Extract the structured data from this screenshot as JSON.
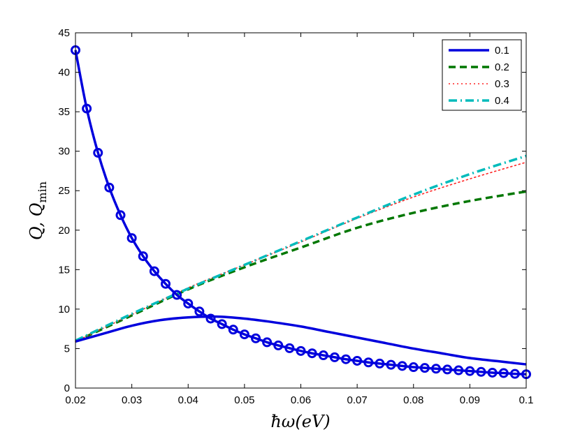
{
  "chart_data": {
    "type": "line",
    "title": "",
    "xlabel": "ħω(eV)",
    "ylabel": "Q, Q_min",
    "ylabel_main": "Q, Q",
    "ylabel_sub": "min",
    "xlim": [
      0.02,
      0.1
    ],
    "ylim": [
      0,
      45
    ],
    "xticks": [
      0.02,
      0.03,
      0.04,
      0.05,
      0.06,
      0.07,
      0.08,
      0.09,
      0.1
    ],
    "xtick_labels": [
      "0.02",
      "0.03",
      "0.04",
      "0.05",
      "0.06",
      "0.07",
      "0.08",
      "0.09",
      "0.1"
    ],
    "yticks": [
      0,
      5,
      10,
      15,
      20,
      25,
      30,
      35,
      40,
      45
    ],
    "ytick_labels": [
      "0",
      "5",
      "10",
      "15",
      "20",
      "25",
      "30",
      "35",
      "40",
      "45"
    ],
    "grid": false,
    "legend_position": "top-right",
    "series": [
      {
        "name": "0.1",
        "color": "#0000dd",
        "style": "solid",
        "x": [
          0.02,
          0.025,
          0.03,
          0.035,
          0.04,
          0.045,
          0.05,
          0.055,
          0.06,
          0.065,
          0.07,
          0.075,
          0.08,
          0.085,
          0.09,
          0.095,
          0.1
        ],
        "values": [
          5.9,
          6.9,
          7.9,
          8.6,
          8.95,
          9.05,
          8.8,
          8.35,
          7.8,
          7.1,
          6.4,
          5.7,
          5.0,
          4.4,
          3.8,
          3.4,
          3.0
        ]
      },
      {
        "name": "0.2",
        "color": "#007700",
        "style": "dashed",
        "x": [
          0.02,
          0.03,
          0.04,
          0.05,
          0.06,
          0.07,
          0.08,
          0.09,
          0.1
        ],
        "values": [
          5.9,
          9.2,
          12.5,
          15.3,
          17.8,
          20.3,
          22.2,
          23.7,
          24.9
        ]
      },
      {
        "name": "0.3",
        "color": "#ff2222",
        "style": "dotted",
        "x": [
          0.02,
          0.03,
          0.04,
          0.05,
          0.06,
          0.07,
          0.08,
          0.09,
          0.1
        ],
        "values": [
          5.9,
          9.3,
          12.7,
          15.6,
          18.5,
          21.5,
          24.2,
          26.5,
          28.6
        ]
      },
      {
        "name": "0.4",
        "color": "#00bbbb",
        "style": "dashdot",
        "x": [
          0.02,
          0.03,
          0.04,
          0.05,
          0.06,
          0.07,
          0.08,
          0.09,
          0.1
        ],
        "values": [
          6.0,
          9.4,
          12.6,
          15.6,
          18.6,
          21.6,
          24.5,
          27.1,
          29.4
        ]
      },
      {
        "name": "Q_min",
        "color": "#0000dd",
        "style": "solid-circle-markers",
        "x": [
          0.02,
          0.022,
          0.024,
          0.026,
          0.028,
          0.03,
          0.032,
          0.034,
          0.036,
          0.038,
          0.04,
          0.042,
          0.044,
          0.046,
          0.048,
          0.05,
          0.052,
          0.054,
          0.056,
          0.058,
          0.06,
          0.062,
          0.064,
          0.066,
          0.068,
          0.07,
          0.072,
          0.074,
          0.076,
          0.078,
          0.08,
          0.082,
          0.084,
          0.086,
          0.088,
          0.09,
          0.092,
          0.094,
          0.096,
          0.098,
          0.1
        ],
        "values": [
          42.8,
          35.4,
          29.8,
          25.4,
          21.9,
          19.0,
          16.7,
          14.8,
          13.2,
          11.8,
          10.7,
          9.7,
          8.8,
          8.1,
          7.4,
          6.8,
          6.3,
          5.8,
          5.4,
          5.05,
          4.7,
          4.4,
          4.15,
          3.9,
          3.65,
          3.45,
          3.25,
          3.1,
          2.95,
          2.8,
          2.65,
          2.55,
          2.45,
          2.35,
          2.25,
          2.15,
          2.05,
          1.95,
          1.9,
          1.8,
          1.75
        ]
      }
    ],
    "legend": [
      "0.1",
      "0.2",
      "0.3",
      "0.4"
    ]
  }
}
